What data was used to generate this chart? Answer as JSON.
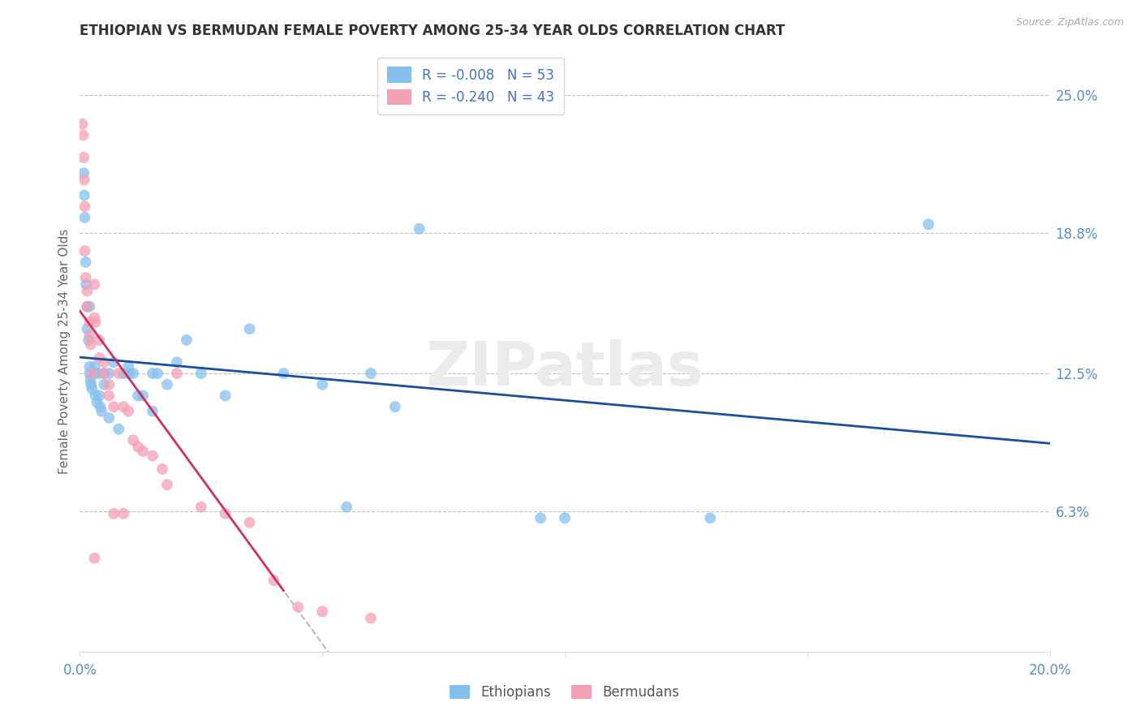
{
  "title": "ETHIOPIAN VS BERMUDAN FEMALE POVERTY AMONG 25-34 YEAR OLDS CORRELATION CHART",
  "source": "Source: ZipAtlas.com",
  "ylabel": "Female Poverty Among 25-34 Year Olds",
  "x_min": 0.0,
  "x_max": 0.2,
  "y_min": 0.0,
  "y_max": 0.27,
  "y_tick_labels_right": [
    "6.3%",
    "12.5%",
    "18.8%",
    "25.0%"
  ],
  "y_tick_vals_right": [
    0.063,
    0.125,
    0.188,
    0.25
  ],
  "color_ethiopian": "#85BFEE",
  "color_bermudan": "#F4A0B5",
  "color_blue_line": "#1A4FA0",
  "color_pink_line": "#D03060",
  "color_gray_dashed": "#BBBBBB",
  "color_grid": "#C0C0C0",
  "color_title": "#333333",
  "color_source": "#AAAAAA",
  "color_right_labels": "#5B8CCA",
  "color_legend_text": "#4472C4",
  "background_color": "#FFFFFF",
  "watermark_text": "ZIPatlas",
  "watermark_color": "#EBEBEB",
  "marker_size": 100,
  "marker_alpha": 0.75,
  "eth_x": [
    0.0008,
    0.0009,
    0.001,
    0.0012,
    0.0013,
    0.0015,
    0.0015,
    0.0018,
    0.002,
    0.002,
    0.0022,
    0.0023,
    0.0025,
    0.003,
    0.003,
    0.0032,
    0.0035,
    0.004,
    0.004,
    0.0042,
    0.0045,
    0.005,
    0.005,
    0.006,
    0.006,
    0.007,
    0.008,
    0.009,
    0.01,
    0.01,
    0.011,
    0.012,
    0.013,
    0.015,
    0.015,
    0.016,
    0.018,
    0.02,
    0.022,
    0.025,
    0.03,
    0.035,
    0.042,
    0.05,
    0.055,
    0.06,
    0.065,
    0.07,
    0.095,
    0.1,
    0.13,
    0.175,
    0.002
  ],
  "eth_y": [
    0.215,
    0.205,
    0.195,
    0.175,
    0.165,
    0.155,
    0.145,
    0.14,
    0.128,
    0.125,
    0.122,
    0.12,
    0.118,
    0.128,
    0.125,
    0.115,
    0.112,
    0.125,
    0.115,
    0.11,
    0.108,
    0.125,
    0.12,
    0.125,
    0.105,
    0.13,
    0.1,
    0.125,
    0.128,
    0.125,
    0.125,
    0.115,
    0.115,
    0.125,
    0.108,
    0.125,
    0.12,
    0.13,
    0.14,
    0.125,
    0.115,
    0.145,
    0.125,
    0.12,
    0.065,
    0.125,
    0.11,
    0.19,
    0.06,
    0.06,
    0.06,
    0.192,
    0.155
  ],
  "ber_x": [
    0.0005,
    0.0007,
    0.0008,
    0.0009,
    0.001,
    0.001,
    0.0012,
    0.0015,
    0.0015,
    0.002,
    0.002,
    0.0022,
    0.0025,
    0.003,
    0.003,
    0.0032,
    0.004,
    0.004,
    0.005,
    0.005,
    0.006,
    0.006,
    0.007,
    0.008,
    0.009,
    0.01,
    0.011,
    0.012,
    0.013,
    0.015,
    0.017,
    0.018,
    0.02,
    0.025,
    0.03,
    0.035,
    0.04,
    0.045,
    0.05,
    0.06,
    0.003,
    0.007,
    0.009
  ],
  "ber_y": [
    0.237,
    0.232,
    0.222,
    0.212,
    0.2,
    0.18,
    0.168,
    0.162,
    0.155,
    0.148,
    0.142,
    0.138,
    0.125,
    0.165,
    0.15,
    0.148,
    0.14,
    0.132,
    0.13,
    0.125,
    0.12,
    0.115,
    0.11,
    0.125,
    0.11,
    0.108,
    0.095,
    0.092,
    0.09,
    0.088,
    0.082,
    0.075,
    0.125,
    0.065,
    0.062,
    0.058,
    0.032,
    0.02,
    0.018,
    0.015,
    0.042,
    0.062,
    0.062
  ]
}
